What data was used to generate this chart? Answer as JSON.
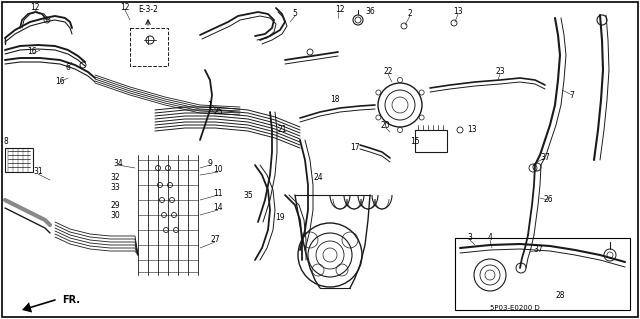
{
  "bg_color": "#ffffff",
  "border_color": "#000000",
  "dc": "#1a1a1a",
  "watermark": "5P03-E0200 D",
  "direction_label": "FR.",
  "fig_width": 6.4,
  "fig_height": 3.19,
  "dpi": 100,
  "note_text": "E-3-2",
  "gray": "#888888",
  "lgray": "#cccccc"
}
